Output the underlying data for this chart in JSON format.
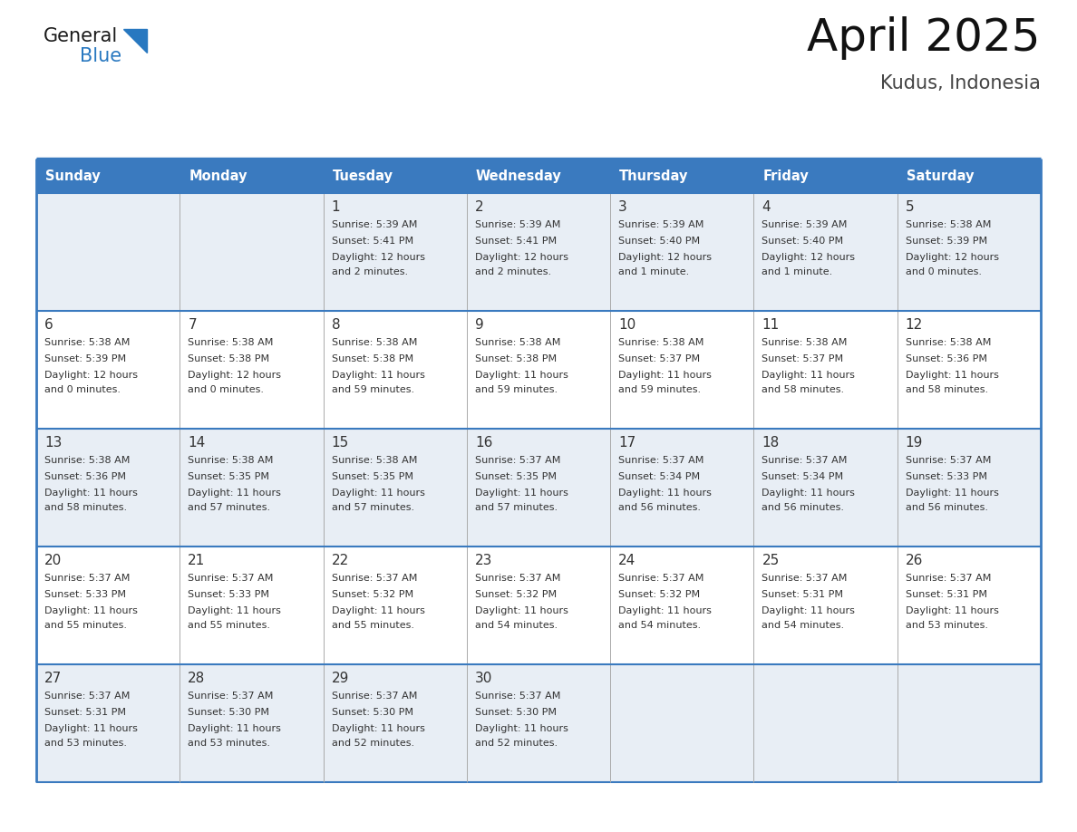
{
  "title": "April 2025",
  "subtitle": "Kudus, Indonesia",
  "header_bg": "#3a7abf",
  "header_text_color": "#ffffff",
  "cell_bg_light": "#e8eef5",
  "cell_bg_white": "#ffffff",
  "border_color": "#3a7abf",
  "divider_color": "#3a7abf",
  "text_color": "#333333",
  "days_of_week": [
    "Sunday",
    "Monday",
    "Tuesday",
    "Wednesday",
    "Thursday",
    "Friday",
    "Saturday"
  ],
  "calendar_data": [
    [
      null,
      null,
      {
        "day": 1,
        "sunrise": "5:39 AM",
        "sunset": "5:41 PM",
        "daylight": "12 hours and 2 minutes."
      },
      {
        "day": 2,
        "sunrise": "5:39 AM",
        "sunset": "5:41 PM",
        "daylight": "12 hours and 2 minutes."
      },
      {
        "day": 3,
        "sunrise": "5:39 AM",
        "sunset": "5:40 PM",
        "daylight": "12 hours and 1 minute."
      },
      {
        "day": 4,
        "sunrise": "5:39 AM",
        "sunset": "5:40 PM",
        "daylight": "12 hours and 1 minute."
      },
      {
        "day": 5,
        "sunrise": "5:38 AM",
        "sunset": "5:39 PM",
        "daylight": "12 hours and 0 minutes."
      }
    ],
    [
      {
        "day": 6,
        "sunrise": "5:38 AM",
        "sunset": "5:39 PM",
        "daylight": "12 hours and 0 minutes."
      },
      {
        "day": 7,
        "sunrise": "5:38 AM",
        "sunset": "5:38 PM",
        "daylight": "12 hours and 0 minutes."
      },
      {
        "day": 8,
        "sunrise": "5:38 AM",
        "sunset": "5:38 PM",
        "daylight": "11 hours and 59 minutes."
      },
      {
        "day": 9,
        "sunrise": "5:38 AM",
        "sunset": "5:38 PM",
        "daylight": "11 hours and 59 minutes."
      },
      {
        "day": 10,
        "sunrise": "5:38 AM",
        "sunset": "5:37 PM",
        "daylight": "11 hours and 59 minutes."
      },
      {
        "day": 11,
        "sunrise": "5:38 AM",
        "sunset": "5:37 PM",
        "daylight": "11 hours and 58 minutes."
      },
      {
        "day": 12,
        "sunrise": "5:38 AM",
        "sunset": "5:36 PM",
        "daylight": "11 hours and 58 minutes."
      }
    ],
    [
      {
        "day": 13,
        "sunrise": "5:38 AM",
        "sunset": "5:36 PM",
        "daylight": "11 hours and 58 minutes."
      },
      {
        "day": 14,
        "sunrise": "5:38 AM",
        "sunset": "5:35 PM",
        "daylight": "11 hours and 57 minutes."
      },
      {
        "day": 15,
        "sunrise": "5:38 AM",
        "sunset": "5:35 PM",
        "daylight": "11 hours and 57 minutes."
      },
      {
        "day": 16,
        "sunrise": "5:37 AM",
        "sunset": "5:35 PM",
        "daylight": "11 hours and 57 minutes."
      },
      {
        "day": 17,
        "sunrise": "5:37 AM",
        "sunset": "5:34 PM",
        "daylight": "11 hours and 56 minutes."
      },
      {
        "day": 18,
        "sunrise": "5:37 AM",
        "sunset": "5:34 PM",
        "daylight": "11 hours and 56 minutes."
      },
      {
        "day": 19,
        "sunrise": "5:37 AM",
        "sunset": "5:33 PM",
        "daylight": "11 hours and 56 minutes."
      }
    ],
    [
      {
        "day": 20,
        "sunrise": "5:37 AM",
        "sunset": "5:33 PM",
        "daylight": "11 hours and 55 minutes."
      },
      {
        "day": 21,
        "sunrise": "5:37 AM",
        "sunset": "5:33 PM",
        "daylight": "11 hours and 55 minutes."
      },
      {
        "day": 22,
        "sunrise": "5:37 AM",
        "sunset": "5:32 PM",
        "daylight": "11 hours and 55 minutes."
      },
      {
        "day": 23,
        "sunrise": "5:37 AM",
        "sunset": "5:32 PM",
        "daylight": "11 hours and 54 minutes."
      },
      {
        "day": 24,
        "sunrise": "5:37 AM",
        "sunset": "5:32 PM",
        "daylight": "11 hours and 54 minutes."
      },
      {
        "day": 25,
        "sunrise": "5:37 AM",
        "sunset": "5:31 PM",
        "daylight": "11 hours and 54 minutes."
      },
      {
        "day": 26,
        "sunrise": "5:37 AM",
        "sunset": "5:31 PM",
        "daylight": "11 hours and 53 minutes."
      }
    ],
    [
      {
        "day": 27,
        "sunrise": "5:37 AM",
        "sunset": "5:31 PM",
        "daylight": "11 hours and 53 minutes."
      },
      {
        "day": 28,
        "sunrise": "5:37 AM",
        "sunset": "5:30 PM",
        "daylight": "11 hours and 53 minutes."
      },
      {
        "day": 29,
        "sunrise": "5:37 AM",
        "sunset": "5:30 PM",
        "daylight": "11 hours and 52 minutes."
      },
      {
        "day": 30,
        "sunrise": "5:37 AM",
        "sunset": "5:30 PM",
        "daylight": "11 hours and 52 minutes."
      },
      null,
      null,
      null
    ]
  ],
  "logo_text1": "General",
  "logo_text2": "Blue",
  "logo_color1": "#1a1a1a",
  "logo_color2": "#2878c0",
  "triangle_color": "#2878c0"
}
